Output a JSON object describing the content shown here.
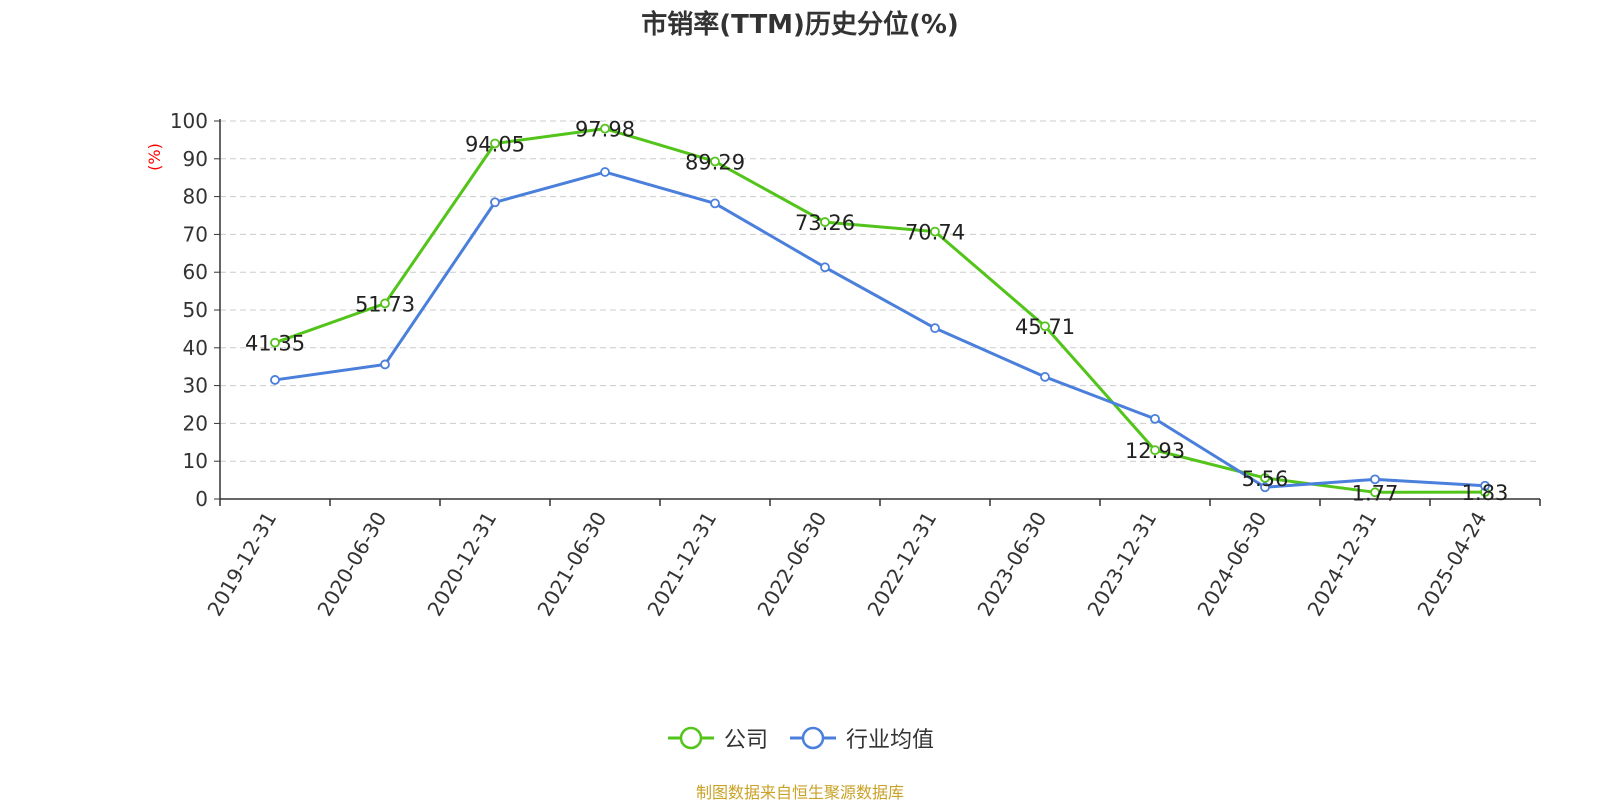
{
  "chart_data": {
    "type": "line",
    "title": "市销率(TTM)历史分位(%)",
    "ylabel": "(%)",
    "ylim": [
      0,
      100
    ],
    "yticks": [
      0,
      10,
      20,
      30,
      40,
      50,
      60,
      70,
      80,
      90,
      100
    ],
    "categories": [
      "2019-12-31",
      "2020-06-30",
      "2020-12-31",
      "2021-06-30",
      "2021-12-31",
      "2022-06-30",
      "2022-12-31",
      "2023-06-30",
      "2023-12-31",
      "2024-06-30",
      "2024-12-31",
      "2025-04-24"
    ],
    "series": [
      {
        "name": "公司",
        "color": "#52c41a",
        "show_labels": true,
        "values": [
          41.35,
          51.73,
          94.05,
          97.98,
          89.29,
          73.26,
          70.74,
          45.71,
          12.93,
          5.56,
          1.77,
          1.83
        ]
      },
      {
        "name": "行业均值",
        "color": "#4a7fdb",
        "show_labels": false,
        "values": [
          31.5,
          35.6,
          78.5,
          86.5,
          78.2,
          61.3,
          45.2,
          32.3,
          21.2,
          3.1,
          5.2,
          3.5
        ]
      }
    ],
    "grid": true,
    "legend_position": "bottom"
  },
  "source_note": "制图数据来自恒生聚源数据库"
}
